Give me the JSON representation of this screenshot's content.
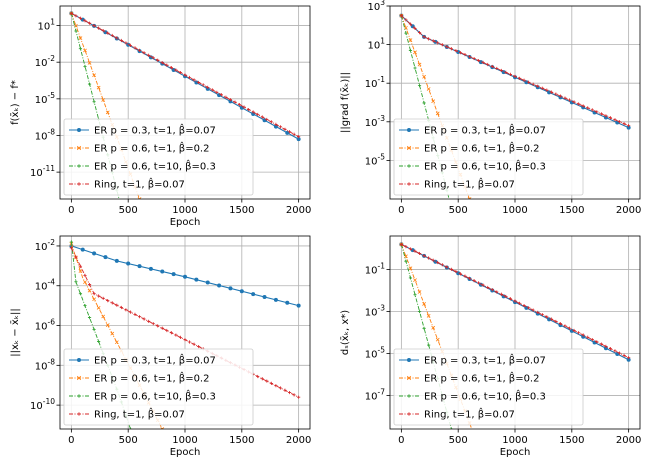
{
  "chart_data": [
    {
      "type": "line",
      "xlabel": "Epoch",
      "ylabel": "f(x̄ₖ) − f*",
      "xlim": [
        -100,
        2100
      ],
      "ylim_log10": [
        -13.2,
        2.6
      ],
      "yscale": "log",
      "xticks": [
        0,
        500,
        1000,
        1500,
        2000
      ],
      "xtick_labels": [
        "0",
        "500",
        "1000",
        "1500",
        "2000"
      ],
      "yticks_log10": [
        1,
        -2,
        -5,
        -8,
        -11
      ],
      "ytick_labels": [
        "10^1",
        "10^-2",
        "10^-5",
        "10^-8",
        "10^-11"
      ],
      "grid": true,
      "legend_position": "lower-left",
      "series": [
        {
          "name": "ER p = 0.3, t=1, β̂=0.07",
          "color": "#1f77b4",
          "marker": "circle",
          "dash": "solid",
          "points": [
            [
              0,
              2.0
            ],
            [
              2000,
              -8.3
            ]
          ]
        },
        {
          "name": "ER p = 0.6, t=1, β̂=0.2",
          "color": "#ff7f0e",
          "marker": "x",
          "dash": "dashdot",
          "points": [
            [
              0,
              2.0
            ],
            [
              600,
              -13.2
            ]
          ]
        },
        {
          "name": "ER p = 0.6, t=10, β̂=0.3",
          "color": "#2ca02c",
          "marker": "plus",
          "dash": "dashdot",
          "points": [
            [
              0,
              2.0
            ],
            [
              420,
              -13.2
            ]
          ]
        },
        {
          "name": "Ring, t=1, β̂=0.07",
          "color": "#d62728",
          "marker": "plus",
          "dash": "dashdot",
          "points": [
            [
              0,
              2.0
            ],
            [
              2000,
              -8.1
            ]
          ]
        }
      ]
    },
    {
      "type": "line",
      "xlabel": "",
      "ylabel": "||grad f(x̄ₖ)||",
      "xlim": [
        -100,
        2100
      ],
      "ylim_log10": [
        -7.0,
        3.0
      ],
      "yscale": "log",
      "xticks": [
        0,
        500,
        1000,
        1500,
        2000
      ],
      "xtick_labels": [
        "0",
        "500",
        "1000",
        "1500",
        "2000"
      ],
      "yticks_log10": [
        3,
        1,
        -1,
        -3,
        -5
      ],
      "ytick_labels": [
        "10^3",
        "10^1",
        "10^-1",
        "10^-3",
        "10^-5"
      ],
      "grid": true,
      "legend_position": "lower-left",
      "series": [
        {
          "name": "ER p = 0.3, t=1, β̂=0.07",
          "color": "#1f77b4",
          "marker": "circle",
          "dash": "solid",
          "points": [
            [
              0,
              2.5
            ],
            [
              200,
              1.4
            ],
            [
              2000,
              -3.3
            ]
          ]
        },
        {
          "name": "ER p = 0.6, t=1, β̂=0.2",
          "color": "#ff7f0e",
          "marker": "x",
          "dash": "dashdot",
          "points": [
            [
              0,
              2.5
            ],
            [
              600,
              -7.0
            ]
          ]
        },
        {
          "name": "ER p = 0.6, t=10, β̂=0.3",
          "color": "#2ca02c",
          "marker": "plus",
          "dash": "dashdot",
          "points": [
            [
              0,
              2.5
            ],
            [
              420,
              -7.0
            ]
          ]
        },
        {
          "name": "Ring, t=1, β̂=0.07",
          "color": "#d62728",
          "marker": "plus",
          "dash": "dashdot",
          "points": [
            [
              0,
              2.5
            ],
            [
              200,
              1.4
            ],
            [
              2000,
              -3.2
            ]
          ]
        }
      ]
    },
    {
      "type": "line",
      "xlabel": "Epoch",
      "ylabel": "||xₖ − x̄ₖ||",
      "xlim": [
        -100,
        2100
      ],
      "ylim_log10": [
        -11.2,
        -1.5
      ],
      "yscale": "log",
      "xticks": [
        0,
        500,
        1000,
        1500,
        2000
      ],
      "xtick_labels": [
        "0",
        "500",
        "1000",
        "1500",
        "2000"
      ],
      "yticks_log10": [
        -2,
        -4,
        -6,
        -8,
        -10
      ],
      "ytick_labels": [
        "10^-2",
        "10^-4",
        "10^-6",
        "10^-8",
        "10^-10"
      ],
      "grid": true,
      "legend_position": "lower-left",
      "series": [
        {
          "name": "ER p = 0.3, t=1, β̂=0.07",
          "color": "#1f77b4",
          "marker": "circle",
          "dash": "solid",
          "points": [
            [
              0,
              -2.0
            ],
            [
              400,
              -2.75
            ],
            [
              1000,
              -3.55
            ],
            [
              2000,
              -5.0
            ]
          ]
        },
        {
          "name": "ER p = 0.6, t=1, β̂=0.2",
          "color": "#ff7f0e",
          "marker": "x",
          "dash": "dashdot",
          "points": [
            [
              0,
              -1.9
            ],
            [
              100,
              -3.6
            ],
            [
              600,
              -9.0
            ],
            [
              800,
              -11.2
            ]
          ]
        },
        {
          "name": "ER p = 0.6, t=10, β̂=0.3",
          "color": "#2ca02c",
          "marker": "plus",
          "dash": "dashdot",
          "points": [
            [
              0,
              -1.8
            ],
            [
              40,
              -3.8
            ],
            [
              420,
              -9.5
            ],
            [
              520,
              -11.2
            ]
          ]
        },
        {
          "name": "Ring, t=1, β̂=0.07",
          "color": "#d62728",
          "marker": "plus",
          "dash": "dashdot",
          "points": [
            [
              0,
              -2.1
            ],
            [
              200,
              -4.4
            ],
            [
              2000,
              -9.6
            ]
          ]
        }
      ]
    },
    {
      "type": "line",
      "xlabel": "Epoch",
      "ylabel": "dₛ(x̄ₖ, x*)",
      "xlim": [
        -100,
        2100
      ],
      "ylim_log10": [
        -8.6,
        0.6
      ],
      "yscale": "log",
      "xticks": [
        0,
        500,
        1000,
        1500,
        2000
      ],
      "xtick_labels": [
        "0",
        "500",
        "1000",
        "1500",
        "2000"
      ],
      "yticks_log10": [
        -1,
        -3,
        -5,
        -7
      ],
      "ytick_labels": [
        "10^-1",
        "10^-3",
        "10^-5",
        "10^-7"
      ],
      "grid": true,
      "legend_position": "lower-left",
      "series": [
        {
          "name": "ER p = 0.3, t=1, β̂=0.07",
          "color": "#1f77b4",
          "marker": "circle",
          "dash": "solid",
          "points": [
            [
              0,
              0.2
            ],
            [
              2000,
              -5.3
            ]
          ]
        },
        {
          "name": "ER p = 0.6, t=1, β̂=0.2",
          "color": "#ff7f0e",
          "marker": "x",
          "dash": "dashdot",
          "points": [
            [
              0,
              0.2
            ],
            [
              620,
              -8.6
            ]
          ]
        },
        {
          "name": "ER p = 0.6, t=10, β̂=0.3",
          "color": "#2ca02c",
          "marker": "plus",
          "dash": "dashdot",
          "points": [
            [
              0,
              0.2
            ],
            [
              440,
              -8.6
            ]
          ]
        },
        {
          "name": "Ring, t=1, β̂=0.07",
          "color": "#d62728",
          "marker": "plus",
          "dash": "dashdot",
          "points": [
            [
              0,
              0.2
            ],
            [
              2000,
              -5.2
            ]
          ]
        }
      ]
    }
  ]
}
